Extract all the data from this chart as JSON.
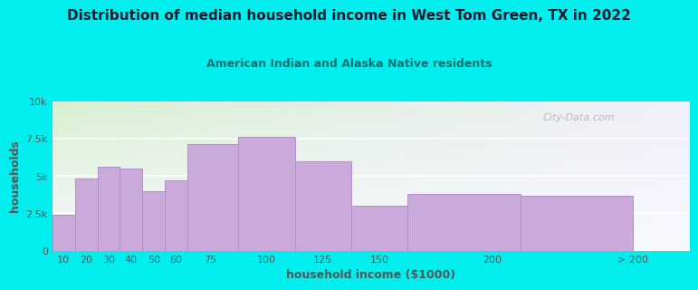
{
  "title": "Distribution of median household income in West Tom Green, TX in 2022",
  "subtitle": "American Indian and Alaska Native residents",
  "xlabel": "household income ($1000)",
  "ylabel": "households",
  "bar_labels": [
    "10",
    "20",
    "30",
    "40",
    "50",
    "60",
    "75",
    "100",
    "125",
    "150",
    "200",
    "> 200"
  ],
  "bar_values": [
    2400,
    4800,
    5600,
    5500,
    4000,
    4700,
    7100,
    7600,
    6000,
    3000,
    3800,
    3700
  ],
  "bar_color": "#c9aada",
  "bar_edgecolor": "#b090c8",
  "bg_color": "#00eeee",
  "plot_bg_top_left": "#d8f0d0",
  "plot_bg_top_right": "#f0f0fa",
  "plot_bg_bottom": "#f8f8ff",
  "title_color": "#1a1a2e",
  "subtitle_color": "#007070",
  "axis_color": "#555555",
  "yticks": [
    0,
    2500,
    5000,
    7500,
    10000
  ],
  "ytick_labels": [
    "0",
    "2.5k",
    "5k",
    "7.5k",
    "10k"
  ],
  "ylim": [
    0,
    10000
  ],
  "watermark": "City-Data.com",
  "bar_lefts": [
    5,
    15,
    25,
    35,
    45,
    55,
    65,
    87.5,
    112.5,
    137.5,
    162.5,
    212.5
  ],
  "bar_widths": [
    10,
    10,
    10,
    10,
    10,
    10,
    22.5,
    25,
    25,
    25,
    50,
    50
  ],
  "xtick_positions": [
    10,
    20,
    30,
    40,
    50,
    60,
    75,
    100,
    125,
    150,
    200,
    262.5
  ],
  "xlim": [
    5,
    287.5
  ]
}
